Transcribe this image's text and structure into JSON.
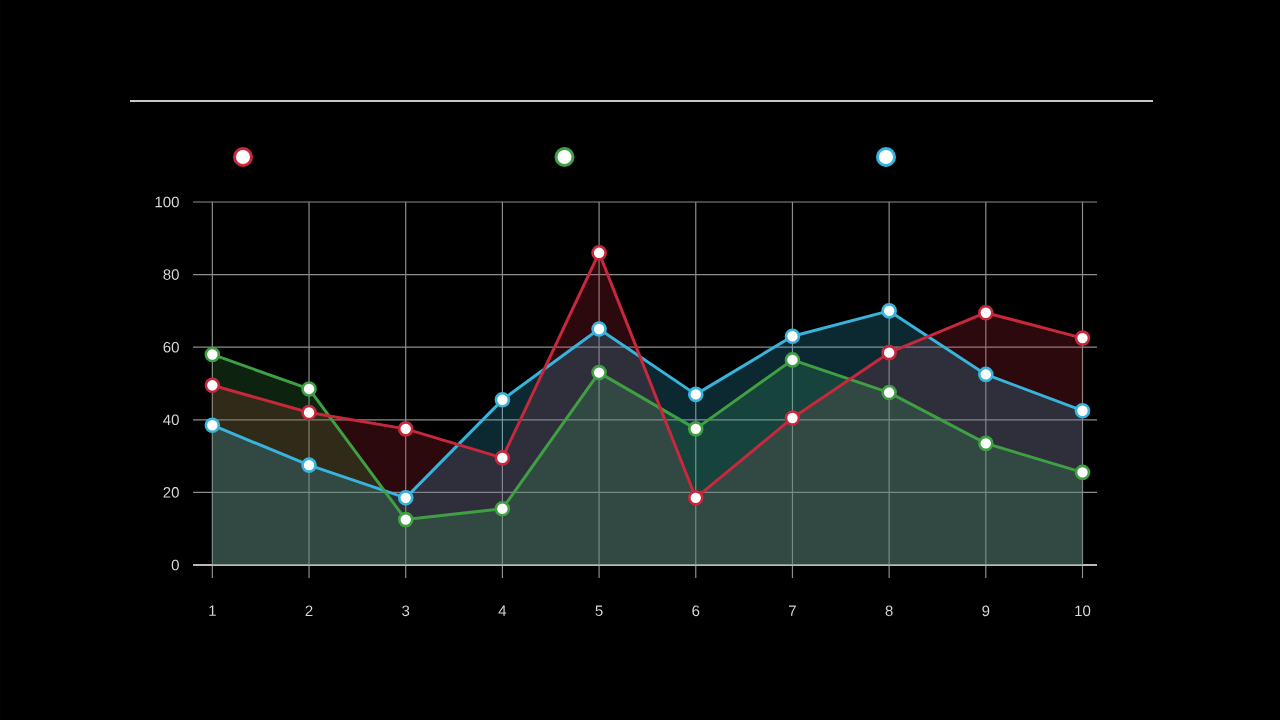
{
  "chart_data": {
    "type": "area",
    "x": [
      1,
      2,
      3,
      4,
      5,
      6,
      7,
      8,
      9,
      10
    ],
    "series": [
      {
        "color": "#c8283c",
        "values": [
          49.5,
          42,
          37.5,
          29.5,
          86,
          18.5,
          40.5,
          58.5,
          69.5,
          62.5
        ]
      },
      {
        "color": "#3fa043",
        "values": [
          58,
          48.5,
          12.5,
          15.5,
          53,
          37.5,
          56.5,
          47.5,
          33.5,
          25.5
        ]
      },
      {
        "color": "#38b4dc",
        "values": [
          38.5,
          27.5,
          18.5,
          45.5,
          65,
          47,
          63,
          70,
          52.5,
          42.5
        ]
      }
    ],
    "xlim": [
      0.8,
      10.15
    ],
    "ylim": [
      0,
      100
    ],
    "xticks": [
      1,
      2,
      3,
      4,
      5,
      6,
      7,
      8,
      9,
      10
    ],
    "yticks": [
      0,
      20,
      40,
      60,
      80,
      100
    ],
    "grid": true,
    "marker": "circle",
    "line_style": "solid"
  }
}
